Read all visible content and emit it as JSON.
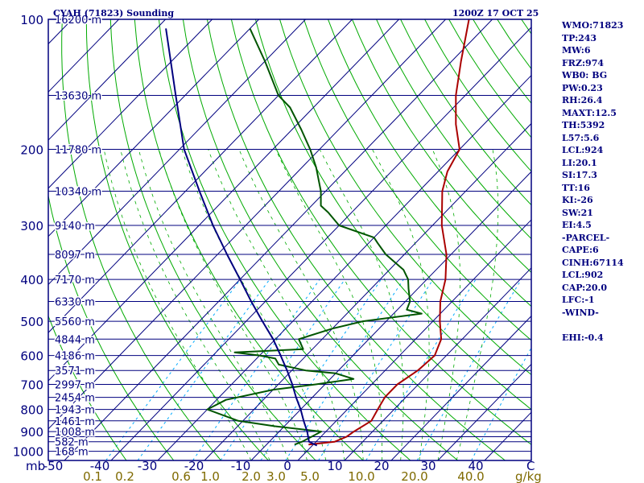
{
  "chart_data": {
    "type": "line",
    "title_left": "CYAH (71823) Sounding",
    "title_right": "1200Z 17 OCT 25",
    "pressure_axis_label": "mb",
    "pressure_levels": [
      100,
      200,
      300,
      400,
      500,
      600,
      700,
      800,
      900,
      1000
    ],
    "isobars": [
      100,
      150,
      200,
      250,
      300,
      350,
      400,
      450,
      500,
      550,
      600,
      650,
      700,
      750,
      800,
      850,
      900,
      925,
      950,
      1000
    ],
    "height_labels": [
      {
        "p": 100,
        "label": "16200 m"
      },
      {
        "p": 150,
        "label": "13630 m"
      },
      {
        "p": 200,
        "label": "11780 m"
      },
      {
        "p": 250,
        "label": "10340 m"
      },
      {
        "p": 300,
        "label": "9140 m"
      },
      {
        "p": 350,
        "label": "8097 m"
      },
      {
        "p": 400,
        "label": "7170 m"
      },
      {
        "p": 450,
        "label": "6330 m"
      },
      {
        "p": 500,
        "label": "5560 m"
      },
      {
        "p": 550,
        "label": "4844 m"
      },
      {
        "p": 600,
        "label": "4186 m"
      },
      {
        "p": 650,
        "label": "3571 m"
      },
      {
        "p": 700,
        "label": "2997 m"
      },
      {
        "p": 750,
        "label": "2454 m"
      },
      {
        "p": 800,
        "label": "1943 m"
      },
      {
        "p": 850,
        "label": "1461 m"
      },
      {
        "p": 900,
        "label": "1008 m"
      },
      {
        "p": 950,
        "label": "582 m"
      },
      {
        "p": 1000,
        "label": "168 m"
      }
    ],
    "temperature_ticks": [
      "-50",
      "-40",
      "-30",
      "-20",
      "-10",
      "0",
      "10",
      "20",
      "30",
      "40"
    ],
    "temperature_unit_label": "C",
    "mixing_ratio_ticks": [
      "0.1",
      "0.2",
      "0.6",
      "1.0",
      "2.0",
      "3.0",
      "5.0",
      "10.0",
      "20.0",
      "40.0"
    ],
    "mixing_ratio_unit_label": "g/kg",
    "xlim_at_1000mb": [
      -50,
      50
    ],
    "ylim_mb": [
      100,
      1050
    ],
    "y_scale": "log",
    "skew": "45deg",
    "series": [
      {
        "role": "temperature",
        "color": "#aa0000",
        "points": [
          [
            965,
            -1
          ],
          [
            950,
            4
          ],
          [
            925,
            5.5
          ],
          [
            900,
            6
          ],
          [
            850,
            7.5
          ],
          [
            800,
            6.5
          ],
          [
            750,
            5.5
          ],
          [
            700,
            5.5
          ],
          [
            650,
            7
          ],
          [
            600,
            7.5
          ],
          [
            550,
            5.5
          ],
          [
            500,
            1.5
          ],
          [
            450,
            -2.5
          ],
          [
            400,
            -6
          ],
          [
            350,
            -11
          ],
          [
            300,
            -18
          ],
          [
            250,
            -25
          ],
          [
            225,
            -28
          ],
          [
            200,
            -30
          ],
          [
            175,
            -36
          ],
          [
            150,
            -42
          ],
          [
            125,
            -48
          ],
          [
            110,
            -52
          ],
          [
            100,
            -55
          ]
        ]
      },
      {
        "role": "dewpoint",
        "color": "#005500",
        "points": [
          [
            965,
            -4
          ],
          [
            950,
            -3
          ],
          [
            925,
            -2
          ],
          [
            900,
            -1
          ],
          [
            875,
            -12
          ],
          [
            850,
            -21
          ],
          [
            800,
            -30
          ],
          [
            760,
            -28
          ],
          [
            720,
            -20
          ],
          [
            700,
            -12
          ],
          [
            680,
            -5
          ],
          [
            660,
            -10
          ],
          [
            650,
            -17
          ],
          [
            630,
            -24
          ],
          [
            610,
            -26
          ],
          [
            600,
            -30
          ],
          [
            590,
            -36
          ],
          [
            580,
            -22
          ],
          [
            550,
            -25
          ],
          [
            520,
            -20
          ],
          [
            500,
            -15
          ],
          [
            480,
            -4
          ],
          [
            470,
            -8
          ],
          [
            450,
            -9
          ],
          [
            420,
            -12
          ],
          [
            400,
            -14
          ],
          [
            380,
            -17
          ],
          [
            350,
            -24
          ],
          [
            330,
            -28
          ],
          [
            320,
            -30
          ],
          [
            300,
            -40
          ],
          [
            280,
            -45
          ],
          [
            270,
            -48
          ],
          [
            250,
            -51
          ],
          [
            220,
            -57
          ],
          [
            200,
            -62
          ],
          [
            180,
            -68
          ],
          [
            160,
            -75
          ],
          [
            150,
            -80
          ],
          [
            125,
            -90
          ],
          [
            105,
            -100
          ]
        ]
      },
      {
        "role": "parcel",
        "color": "#00007f",
        "points": [
          [
            970,
            1
          ],
          [
            950,
            -1.5
          ],
          [
            900,
            -4
          ],
          [
            850,
            -7
          ],
          [
            800,
            -10
          ],
          [
            750,
            -13.5
          ],
          [
            700,
            -17
          ],
          [
            650,
            -21
          ],
          [
            600,
            -25.5
          ],
          [
            550,
            -30.5
          ],
          [
            500,
            -36.5
          ],
          [
            450,
            -43
          ],
          [
            400,
            -50
          ],
          [
            350,
            -58
          ],
          [
            300,
            -67
          ],
          [
            250,
            -77
          ],
          [
            200,
            -89
          ],
          [
            150,
            -102
          ],
          [
            120,
            -112
          ],
          [
            105,
            -118
          ]
        ]
      }
    ]
  },
  "stats": [
    "WMO:71823",
    "TP:243",
    "MW:6",
    "FRZ:974",
    "WB0: BG",
    "PW:0.23",
    "RH:26.4",
    "MAXT:12.5",
    "TH:5392",
    "L57:5.6",
    "LCL:924",
    "LI:20.1",
    "SI:17.3",
    "TT:16",
    "KI:-26",
    "SW:21",
    "EI:4.5",
    "-PARCEL-",
    "CAPE:6",
    "CINH:67114",
    "LCL:902",
    "CAP:20.0",
    "LFC:-1",
    "-WIND-",
    "",
    "EHI:-0.4"
  ],
  "colors": {
    "frame": "#00007f",
    "isobar": "#00007f",
    "isotherm": "#00007f",
    "dry_adiabat": "#00aa00",
    "moist_adiabat": "#00aa00",
    "mixing_ratio": "#00aaff",
    "labels": "#00007f",
    "mixing_labels": "#7f6a00"
  }
}
